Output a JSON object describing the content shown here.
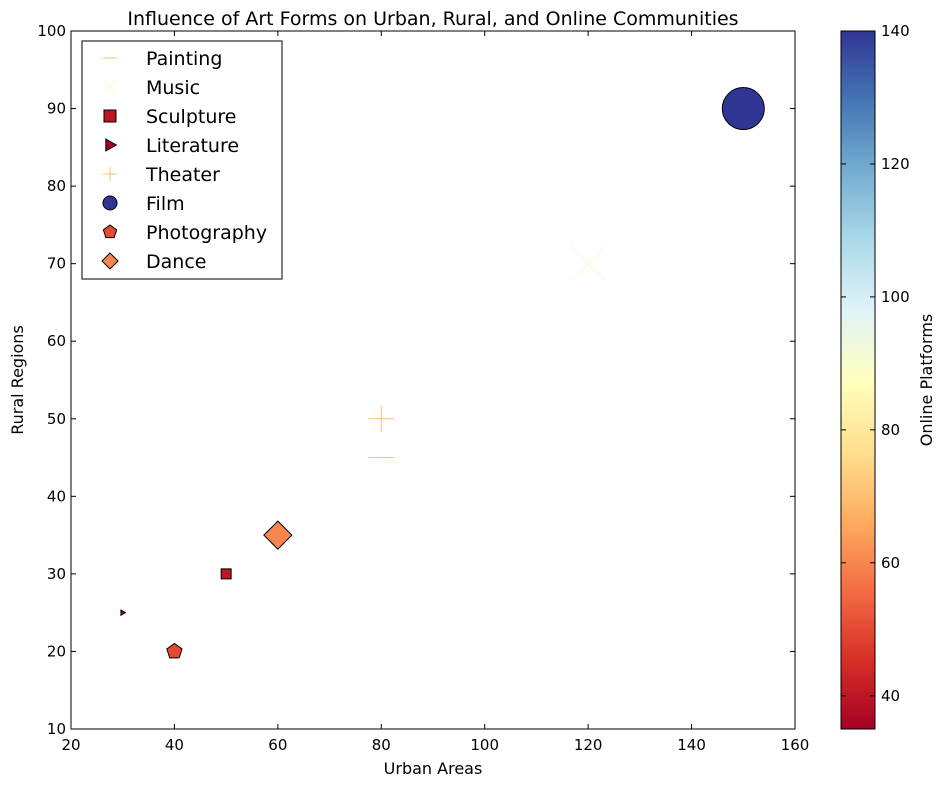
{
  "chart_data": {
    "type": "scatter",
    "title": "Influence of Art Forms on Urban, Rural, and Online Communities",
    "xlabel": "Urban Areas",
    "ylabel": "Rural Regions",
    "colorbar_label": "Online Platforms",
    "colormap": "RdYlBu",
    "xlim": [
      20,
      160
    ],
    "ylim": [
      10,
      100
    ],
    "clim": [
      35,
      140
    ],
    "xticks": [
      20,
      40,
      60,
      80,
      100,
      120,
      140,
      160
    ],
    "yticks": [
      10,
      20,
      30,
      40,
      50,
      60,
      70,
      80,
      90,
      100
    ],
    "cticks": [
      40,
      60,
      80,
      100,
      120,
      140
    ],
    "grid": false,
    "legend_position": "upper left",
    "series": [
      {
        "name": "Painting",
        "marker": "hline",
        "x": 80,
        "y": 45,
        "online": 70
      },
      {
        "name": "Music",
        "marker": "x",
        "x": 120,
        "y": 70,
        "online": 90
      },
      {
        "name": "Sculpture",
        "marker": "square",
        "x": 50,
        "y": 30,
        "online": 40
      },
      {
        "name": "Literature",
        "marker": "triangle",
        "x": 30,
        "y": 25,
        "online": 35
      },
      {
        "name": "Theater",
        "marker": "plus",
        "x": 80,
        "y": 50,
        "online": 70
      },
      {
        "name": "Film",
        "marker": "circle",
        "x": 150,
        "y": 90,
        "online": 140
      },
      {
        "name": "Photography",
        "marker": "pentagon",
        "x": 40,
        "y": 20,
        "online": 50
      },
      {
        "name": "Dance",
        "marker": "diamond",
        "x": 60,
        "y": 35,
        "online": 60
      }
    ]
  }
}
